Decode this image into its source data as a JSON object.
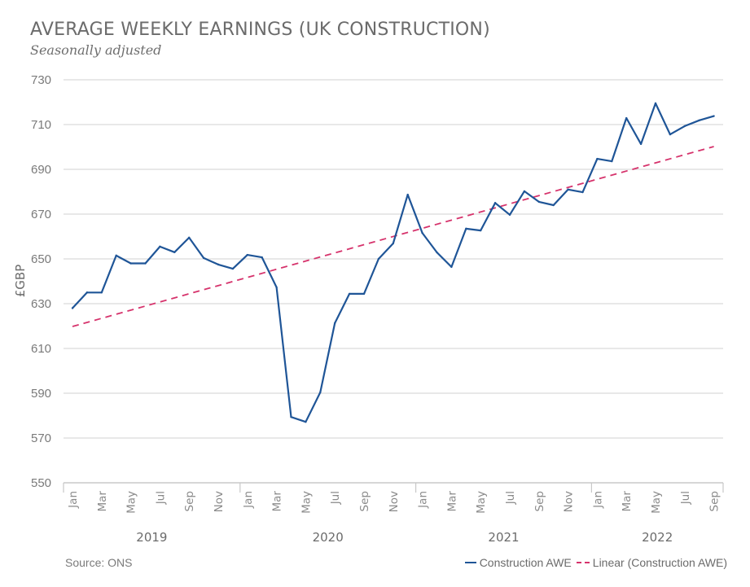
{
  "chart_data": {
    "type": "line",
    "title": "AVERAGE WEEKLY EARNINGS (UK CONSTRUCTION)",
    "subtitle": "Seasonally adjusted",
    "xlabel": "",
    "ylabel": "£GBP",
    "ylim": [
      550,
      730
    ],
    "yticks": [
      550,
      570,
      590,
      610,
      630,
      650,
      670,
      690,
      710,
      730
    ],
    "grid": true,
    "legend_position": "bottom-right",
    "source": "Source: ONS",
    "x": [
      "Jan 2019",
      "Feb 2019",
      "Mar 2019",
      "Apr 2019",
      "May 2019",
      "Jun 2019",
      "Jul 2019",
      "Aug 2019",
      "Sep 2019",
      "Oct 2019",
      "Nov 2019",
      "Dec 2019",
      "Jan 2020",
      "Feb 2020",
      "Mar 2020",
      "Apr 2020",
      "May 2020",
      "Jun 2020",
      "Jul 2020",
      "Aug 2020",
      "Sep 2020",
      "Oct 2020",
      "Nov 2020",
      "Dec 2020",
      "Jan 2021",
      "Feb 2021",
      "Mar 2021",
      "Apr 2021",
      "May 2021",
      "Jun 2021",
      "Jul 2021",
      "Aug 2021",
      "Sep 2021",
      "Oct 2021",
      "Nov 2021",
      "Dec 2021",
      "Jan 2022",
      "Feb 2022",
      "Mar 2022",
      "Apr 2022",
      "May 2022",
      "Jun 2022",
      "Jul 2022",
      "Aug 2022",
      "Sep 2022"
    ],
    "month_tick_labels": [
      "Jan",
      "Mar",
      "May",
      "Jul",
      "Sep",
      "Nov",
      "Jan",
      "Mar",
      "May",
      "Jul",
      "Sep",
      "Nov",
      "Jan",
      "Mar",
      "May",
      "Jul",
      "Sep",
      "Nov",
      "Jan",
      "Mar",
      "May",
      "Jul",
      "Sep"
    ],
    "month_tick_indices": [
      0,
      2,
      4,
      6,
      8,
      10,
      12,
      14,
      16,
      18,
      20,
      22,
      24,
      26,
      28,
      30,
      32,
      34,
      36,
      38,
      40,
      42,
      44
    ],
    "year_groups": [
      {
        "label": "2019",
        "start": 0,
        "end": 11
      },
      {
        "label": "2020",
        "start": 12,
        "end": 23
      },
      {
        "label": "2021",
        "start": 24,
        "end": 35
      },
      {
        "label": "2022",
        "start": 36,
        "end": 44
      }
    ],
    "series": [
      {
        "name": "Construction AWE",
        "style": "solid",
        "color": "#1f5597",
        "values": [
          628,
          635,
          635,
          651.5,
          648,
          648,
          655.5,
          653,
          659.5,
          650.4,
          647.5,
          645.6,
          651.8,
          650.7,
          637.3,
          579.4,
          577.2,
          590.4,
          621.3,
          634.4,
          634.4,
          650,
          656.9,
          678.7,
          661.6,
          652.9,
          646.4,
          663.5,
          662.7,
          675,
          669.7,
          680.2,
          675.5,
          674,
          681,
          679.8,
          694.7,
          693.6,
          712.9,
          701.3,
          719.5,
          705.6,
          709.3,
          711.9,
          713.8
        ]
      },
      {
        "name": "Linear (Construction AWE)",
        "style": "dashed",
        "color": "#d6336c",
        "start_value": 619.8,
        "end_value": 700.2
      }
    ]
  }
}
